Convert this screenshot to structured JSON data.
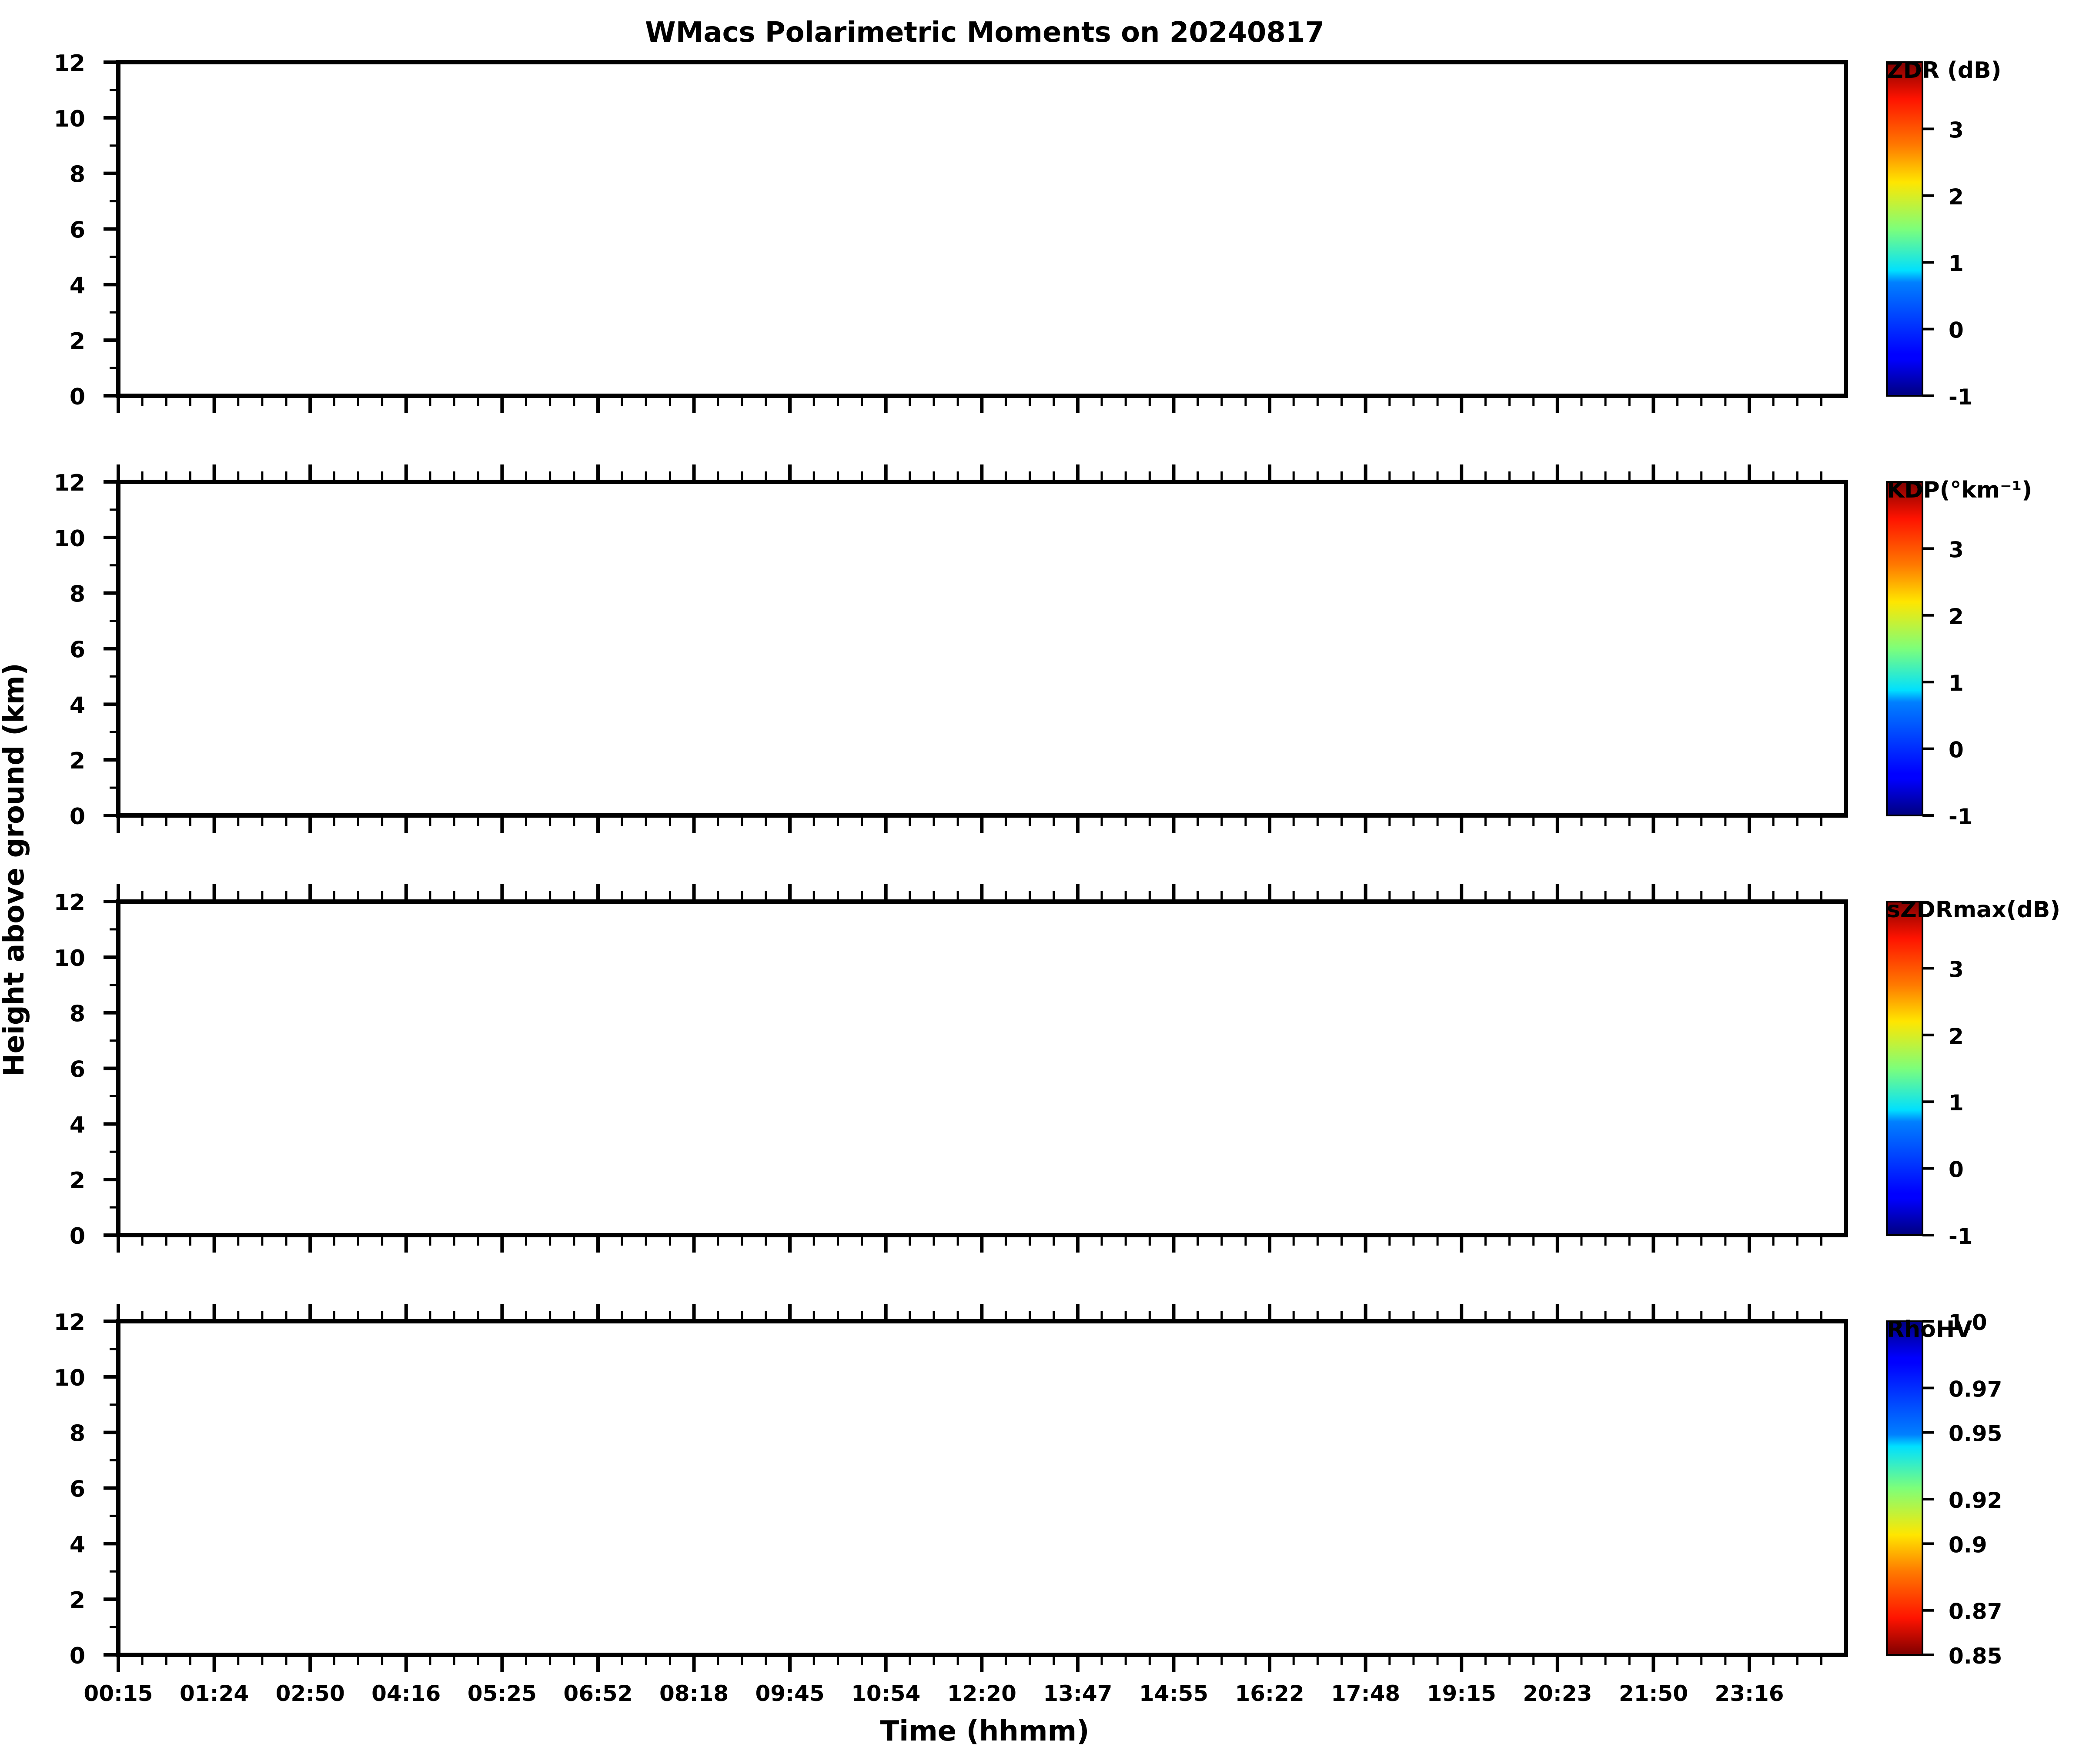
{
  "figure": {
    "title": "WMacs Polarimetric Moments on 20240817",
    "xlabel": "Time (hhmm)",
    "ylabel": "Height above ground (km)"
  },
  "chart_data": {
    "type": "heatmap",
    "x_ticklabels": [
      "00:15",
      "01:24",
      "02:50",
      "04:16",
      "05:25",
      "06:52",
      "08:18",
      "09:45",
      "10:54",
      "12:20",
      "13:47",
      "14:55",
      "16:22",
      "17:48",
      "19:15",
      "20:23",
      "21:50",
      "23:16"
    ],
    "ylim": [
      0,
      12
    ],
    "y_ticks": [
      0,
      2,
      4,
      6,
      8,
      10,
      12
    ],
    "colormap": "jet",
    "panels": [
      {
        "colorbar_label": "ZDR (dB)",
        "colorbar_range": [
          -1,
          4
        ],
        "colorbar_ticks": [
          "-1",
          "0",
          "1",
          "2",
          "3"
        ],
        "colorbar_reversed": false
      },
      {
        "colorbar_label": "KDP(°km⁻¹)",
        "colorbar_range": [
          -1,
          4
        ],
        "colorbar_ticks": [
          "-1",
          "0",
          "1",
          "2",
          "3"
        ],
        "colorbar_reversed": false
      },
      {
        "colorbar_label": "sZDRmax(dB)",
        "colorbar_range": [
          -1,
          4
        ],
        "colorbar_ticks": [
          "-1",
          "0",
          "1",
          "2",
          "3"
        ],
        "colorbar_reversed": false
      },
      {
        "colorbar_label": "RhoHV",
        "colorbar_range": [
          0.85,
          1.0
        ],
        "colorbar_ticks": [
          "0.85",
          "0.87",
          "0.9",
          "0.92",
          "0.95",
          "0.97",
          "1.0"
        ],
        "colorbar_reversed": true
      }
    ]
  }
}
